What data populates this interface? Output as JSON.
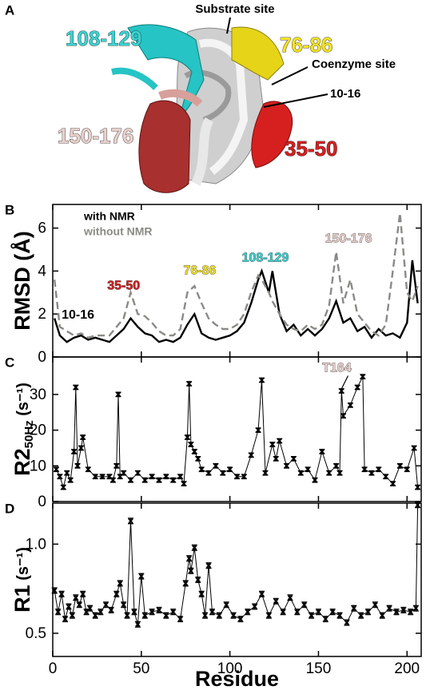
{
  "structure": {
    "panel": "A",
    "labels": [
      "Substrate site",
      "108-129",
      "76-86",
      "Coenzyme site",
      "10-16",
      "150-176",
      "35-50"
    ]
  },
  "chart_data": [
    {
      "type": "line",
      "panel": "B",
      "ylabel": {
        "text": "RMSD (Å)"
      },
      "xlim": [
        0,
        208
      ],
      "xticks": [
        0,
        50,
        100,
        150,
        200
      ],
      "ylim": [
        0,
        7.1
      ],
      "yticks": [
        0,
        2,
        4,
        6
      ],
      "x": [
        1,
        4,
        8,
        12,
        16,
        20,
        24,
        28,
        32,
        36,
        40,
        44,
        48,
        52,
        56,
        60,
        64,
        68,
        72,
        76,
        80,
        84,
        88,
        92,
        96,
        100,
        104,
        108,
        112,
        116,
        118,
        122,
        124,
        128,
        132,
        136,
        140,
        144,
        148,
        152,
        156,
        160,
        164,
        168,
        172,
        176,
        180,
        184,
        188,
        192,
        196,
        200,
        203,
        206
      ],
      "series": [
        {
          "name": "with NMR",
          "color": "#000000",
          "dash": false,
          "values": [
            1.8,
            1.0,
            0.7,
            0.9,
            1.0,
            0.8,
            0.9,
            0.8,
            0.7,
            1.0,
            1.3,
            1.8,
            1.4,
            1.1,
            1.0,
            0.7,
            0.8,
            0.7,
            0.9,
            1.5,
            2.0,
            1.1,
            0.9,
            0.8,
            0.9,
            1.0,
            1.2,
            1.6,
            2.5,
            3.6,
            4.0,
            3.0,
            4.0,
            2.0,
            1.2,
            1.5,
            1.0,
            1.3,
            1.0,
            1.3,
            1.8,
            2.6,
            1.6,
            1.8,
            1.2,
            1.4,
            0.9,
            1.3,
            1.0,
            1.1,
            0.9,
            1.6,
            4.5,
            2.5
          ]
        },
        {
          "name": "without NMR",
          "color": "#8a8a86",
          "dash": true,
          "values": [
            3.6,
            1.4,
            1.2,
            1.0,
            1.1,
            0.9,
            1.0,
            1.0,
            1.0,
            1.4,
            1.8,
            3.0,
            2.0,
            1.9,
            1.6,
            1.2,
            1.0,
            1.0,
            1.3,
            3.0,
            3.3,
            2.5,
            1.8,
            1.5,
            1.3,
            1.3,
            1.5,
            2.0,
            3.0,
            3.8,
            3.6,
            3.0,
            2.6,
            2.0,
            1.5,
            1.3,
            1.2,
            1.5,
            1.3,
            1.5,
            2.4,
            4.9,
            2.5,
            3.6,
            2.0,
            1.6,
            1.2,
            1.0,
            1.5,
            4.0,
            6.7,
            3.0,
            2.6,
            3.3
          ]
        }
      ],
      "annotations": [
        {
          "text": "10-16",
          "color": "#000000"
        },
        {
          "text": "35-50",
          "color": "#d42020"
        },
        {
          "text": "76-86",
          "color": "#f2e224"
        },
        {
          "text": "108-129",
          "color": "#3cd2d2"
        },
        {
          "text": "150-176",
          "color": "#ead0cc"
        }
      ]
    },
    {
      "type": "errorbar",
      "panel": "C",
      "ylabel": {
        "text": "R2",
        "sub": "50Hz",
        "unit": " (s⁻¹)"
      },
      "xlim": [
        0,
        208
      ],
      "xticks": [
        0,
        50,
        100,
        150,
        200
      ],
      "ylim": [
        0,
        40.5
      ],
      "yticks": [
        0,
        10,
        20,
        30
      ],
      "error": 0.6,
      "x": [
        2,
        4,
        6,
        8,
        10,
        12,
        13,
        14,
        16,
        17,
        20,
        24,
        28,
        32,
        34,
        36,
        37,
        38,
        40,
        44,
        48,
        52,
        56,
        60,
        64,
        68,
        72,
        74,
        76,
        77,
        78,
        80,
        82,
        84,
        88,
        92,
        96,
        100,
        104,
        108,
        112,
        116,
        118,
        120,
        124,
        126,
        128,
        132,
        136,
        140,
        144,
        148,
        152,
        156,
        160,
        162,
        163,
        164,
        168,
        172,
        175,
        176,
        180,
        184,
        188,
        192,
        196,
        200,
        204,
        206
      ],
      "series": [
        {
          "color": "#000000",
          "values": [
            9,
            7,
            4,
            8,
            6,
            14,
            32,
            10,
            15,
            18,
            9,
            7,
            7,
            7,
            6,
            10,
            30,
            7,
            8,
            6,
            8,
            6,
            7,
            6,
            7,
            6,
            7,
            5,
            18,
            33,
            16,
            14,
            12,
            9,
            8,
            10,
            8,
            9,
            7,
            7,
            13,
            20,
            34,
            8,
            16,
            12,
            17,
            10,
            12,
            8,
            9,
            6,
            14,
            8,
            10,
            8,
            31,
            24,
            27,
            32,
            35,
            9,
            8,
            9,
            7,
            5,
            10,
            9,
            15,
            4
          ]
        }
      ],
      "annotations": [
        {
          "text": "T164",
          "color": "#ead0cc"
        }
      ]
    },
    {
      "type": "errorbar",
      "panel": "D",
      "ylabel": {
        "text": "R1",
        "unit": " (s⁻¹)"
      },
      "xlabel": "Residue",
      "xlim": [
        0,
        208
      ],
      "xticks": [
        0,
        50,
        100,
        150,
        200
      ],
      "ylim": [
        0.37,
        1.23
      ],
      "yticks": [
        0.5,
        {
          "value": 1,
          "label": "1.0"
        }
      ],
      "error": 0.015,
      "x": [
        1,
        3,
        5,
        7,
        9,
        11,
        13,
        15,
        17,
        19,
        21,
        24,
        27,
        30,
        33,
        36,
        38,
        40,
        42,
        44,
        46,
        48,
        50,
        52,
        56,
        60,
        64,
        68,
        72,
        75,
        77,
        78,
        80,
        82,
        84,
        86,
        88,
        90,
        94,
        98,
        102,
        106,
        110,
        114,
        118,
        122,
        126,
        130,
        134,
        138,
        142,
        146,
        150,
        154,
        158,
        162,
        166,
        170,
        174,
        178,
        182,
        186,
        190,
        194,
        198,
        202,
        205,
        206
      ],
      "series": [
        {
          "color": "#000000",
          "values": [
            0.74,
            0.62,
            0.72,
            0.58,
            0.65,
            0.6,
            0.7,
            0.66,
            0.72,
            0.62,
            0.64,
            0.6,
            0.62,
            0.66,
            0.63,
            0.72,
            0.78,
            0.66,
            0.6,
            1.13,
            0.62,
            0.55,
            0.82,
            0.6,
            0.62,
            0.63,
            0.6,
            0.62,
            0.58,
            0.78,
            0.92,
            0.85,
            0.98,
            0.8,
            0.72,
            0.6,
            0.88,
            0.62,
            0.6,
            0.66,
            0.6,
            0.58,
            0.62,
            0.65,
            0.72,
            0.6,
            0.68,
            0.62,
            0.7,
            0.62,
            0.66,
            0.6,
            0.62,
            0.58,
            0.62,
            0.6,
            0.56,
            0.64,
            0.6,
            0.62,
            0.66,
            0.6,
            0.64,
            0.62,
            0.63,
            0.62,
            0.64,
            1.22
          ]
        }
      ]
    }
  ]
}
